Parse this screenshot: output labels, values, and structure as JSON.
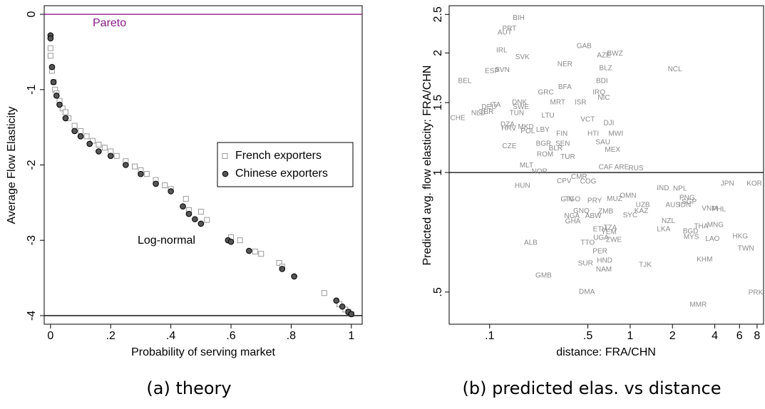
{
  "chart_data": [
    {
      "type": "scatter",
      "caption": "(a) theory",
      "xlabel": "Probability of serving market",
      "ylabel": "Average Flow Elasticity",
      "xlim": [
        -0.021,
        1.036
      ],
      "ylim": [
        -4.114,
        0.114
      ],
      "xticks": [
        0,
        {
          "value": 0.2,
          "label": ".2"
        },
        {
          "value": 0.4,
          "label": ".4"
        },
        {
          "value": 0.6,
          "label": ".6"
        },
        {
          "value": 0.8,
          "label": ".8"
        },
        1
      ],
      "yticks": [
        0,
        -1,
        -2,
        -3,
        -4
      ],
      "reference_lines": [
        {
          "value": 0,
          "label": "Pareto",
          "color": "#8b1a89"
        },
        {
          "value": -4,
          "label": "Log-normal",
          "color": "#000000"
        }
      ],
      "legend": "right",
      "series": [
        {
          "name": "French exporters",
          "color": "#9a9a9a",
          "marker": "square",
          "x": [
            0,
            0,
            0.005,
            0.01,
            0.015,
            0.02,
            0.03,
            0.04,
            0.05,
            0.06,
            0.08,
            0.1,
            0.12,
            0.14,
            0.16,
            0.18,
            0.2,
            0.22,
            0.25,
            0.28,
            0.3,
            0.32,
            0.35,
            0.38,
            0.4,
            0.45,
            0.46,
            0.5,
            0.52,
            0.6,
            0.63,
            0.68,
            0.7,
            0.76,
            0.77,
            0.91,
            0.96,
            0.98,
            0.99,
            1
          ],
          "values": [
            -0.45,
            -0.55,
            -0.75,
            -0.9,
            -1.0,
            -1.05,
            -1.15,
            -1.25,
            -1.3,
            -1.38,
            -1.48,
            -1.55,
            -1.62,
            -1.68,
            -1.73,
            -1.77,
            -1.82,
            -1.88,
            -1.95,
            -2.02,
            -2.07,
            -2.12,
            -2.2,
            -2.27,
            -2.32,
            -2.45,
            -2.6,
            -2.62,
            -2.73,
            -2.96,
            -3.0,
            -3.15,
            -3.18,
            -3.3,
            -3.35,
            -3.7,
            -3.85,
            -3.92,
            -3.95,
            -3.98
          ]
        },
        {
          "name": "Chinese exporters",
          "color": "#555555",
          "marker": "circle",
          "x": [
            0,
            0,
            0.005,
            0.01,
            0.02,
            0.03,
            0.05,
            0.08,
            0.1,
            0.13,
            0.16,
            0.2,
            0.25,
            0.3,
            0.35,
            0.4,
            0.44,
            0.46,
            0.48,
            0.5,
            0.59,
            0.6,
            0.66,
            0.77,
            0.81,
            0.95,
            0.97,
            0.99,
            1
          ],
          "values": [
            -0.28,
            -0.32,
            -0.7,
            -0.9,
            -1.08,
            -1.2,
            -1.38,
            -1.55,
            -1.62,
            -1.72,
            -1.82,
            -1.88,
            -2.0,
            -2.12,
            -2.25,
            -2.35,
            -2.55,
            -2.65,
            -2.72,
            -2.78,
            -3.0,
            -3.02,
            -3.14,
            -3.38,
            -3.48,
            -3.8,
            -3.88,
            -3.95,
            -3.98
          ]
        }
      ]
    },
    {
      "type": "labeled-scatter",
      "caption": "(b) predicted elas. vs distance",
      "xlabel": "distance: FRA/CHN",
      "ylabel": "Predicted avg. flow elasticity: FRA/CHN",
      "xlog": true,
      "ylog": true,
      "xlim": [
        0.0515,
        8.9
      ],
      "ylim": [
        0.415,
        2.63
      ],
      "color": "#8a8a8a",
      "xticks": [
        {
          "value": 0.1,
          "label": ".1"
        },
        {
          "value": 0.5,
          "label": ".5"
        },
        1,
        2,
        4,
        6,
        8
      ],
      "yticks": [
        {
          "value": 0.5,
          "label": ".5"
        },
        1,
        1.5,
        2,
        2.5
      ],
      "reference_lines": [
        {
          "value": 1,
          "color": "#000000"
        }
      ],
      "labels": [
        "BIH",
        "PRT",
        "AUT",
        "IRL",
        "SVK",
        "GAB",
        "AZE",
        "BWZ",
        "NER",
        "BLZ",
        "NCL",
        "ESP",
        "SVN",
        "BEL",
        "BFA",
        "BDI",
        "GRC",
        "IRQ",
        "NIC",
        "DNK",
        "MRT",
        "ISR",
        "ITA",
        "SWE",
        "DEU",
        "CHE",
        "NLD",
        "GBR",
        "TUN",
        "LTU",
        "VCT",
        "DJI",
        "DZA",
        "HRV",
        "MKD",
        "POL",
        "LBY",
        "FIN",
        "HTI",
        "MWI",
        "CZE",
        "BGR",
        "SEN",
        "ROM",
        "TUR",
        "BLR",
        "MEX",
        "MLT",
        "NOR",
        "CAF",
        "ARE",
        "RUS",
        "HUN",
        "CPV",
        "COG",
        "IND",
        "NPL",
        "JPN",
        "KOR",
        "PNG",
        "SGP",
        "AUS",
        "IDN",
        "VNM",
        "PHL",
        "GIN",
        "TGO",
        "PRY",
        "MUZ",
        "OMN",
        "UZB",
        "KAZ",
        "GNQ",
        "ZMB",
        "SYC",
        "NGA",
        "ABW",
        "NZL",
        "GHA",
        "ETH",
        "TZA",
        "YEM",
        "LKA",
        "THA",
        "MNG",
        "BGD",
        "UGA",
        "ZWE",
        "MYS",
        "LAO",
        "HKG",
        "ALB",
        "TTO",
        "TWN",
        "PER",
        "HND",
        "SUR",
        "NAM",
        "TJK",
        "KHM",
        "GMB",
        "DMA",
        "PRK",
        "MMR",
        "SAU",
        "CMR"
      ],
      "x": [
        0.161,
        0.138,
        0.128,
        0.122,
        0.171,
        0.47,
        0.65,
        0.78,
        0.343,
        0.67,
        2.08,
        0.104,
        0.123,
        0.0666,
        0.343,
        0.63,
        0.251,
        0.6,
        0.65,
        0.163,
        0.305,
        0.443,
        0.11,
        0.167,
        0.099,
        0.0593,
        0.083,
        0.094,
        0.156,
        0.26,
        0.498,
        0.705,
        0.134,
        0.137,
        0.181,
        0.187,
        0.239,
        0.327,
        0.546,
        0.79,
        0.138,
        0.242,
        0.331,
        0.248,
        0.36,
        0.295,
        0.75,
        0.183,
        0.226,
        0.67,
        0.87,
        1.1,
        0.171,
        0.339,
        0.503,
        1.71,
        2.26,
        4.92,
        7.65,
        2.54,
        2.63,
        2.01,
        2.45,
        3.68,
        4.28,
        0.355,
        0.39,
        0.559,
        0.774,
        0.966,
        1.23,
        1.2,
        0.449,
        0.67,
        1.0,
        0.385,
        0.546,
        1.87,
        0.391,
        0.61,
        0.72,
        0.705,
        1.73,
        3.2,
        4.04,
        2.69,
        0.62,
        0.765,
        2.72,
        3.85,
        6.07,
        0.196,
        0.498,
        6.66,
        0.61,
        0.658,
        0.481,
        0.65,
        1.28,
        3.39,
        0.242,
        0.492,
        7.83,
        3.05,
        0.64,
        0.433
      ],
      "values": [
        2.45,
        2.3,
        2.25,
        2.03,
        1.95,
        2.08,
        1.97,
        1.99,
        1.87,
        1.83,
        1.82,
        1.8,
        1.81,
        1.7,
        1.64,
        1.7,
        1.59,
        1.59,
        1.54,
        1.5,
        1.5,
        1.5,
        1.48,
        1.46,
        1.46,
        1.37,
        1.41,
        1.42,
        1.41,
        1.39,
        1.36,
        1.33,
        1.32,
        1.29,
        1.3,
        1.27,
        1.28,
        1.25,
        1.25,
        1.25,
        1.165,
        1.18,
        1.18,
        1.11,
        1.095,
        1.15,
        1.14,
        1.04,
        1.005,
        1.03,
        1.03,
        1.025,
        0.925,
        0.95,
        0.948,
        0.913,
        0.91,
        0.936,
        0.936,
        0.862,
        0.844,
        0.827,
        0.827,
        0.81,
        0.807,
        0.855,
        0.855,
        0.848,
        0.858,
        0.873,
        0.827,
        0.8,
        0.8,
        0.797,
        0.78,
        0.777,
        0.777,
        0.755,
        0.752,
        0.72,
        0.725,
        0.707,
        0.72,
        0.731,
        0.737,
        0.71,
        0.684,
        0.676,
        0.687,
        0.68,
        0.69,
        0.665,
        0.665,
        0.643,
        0.633,
        0.6,
        0.59,
        0.57,
        0.585,
        0.604,
        0.55,
        0.5,
        0.498,
        0.464,
        1.19,
        0.975
      ]
    }
  ]
}
